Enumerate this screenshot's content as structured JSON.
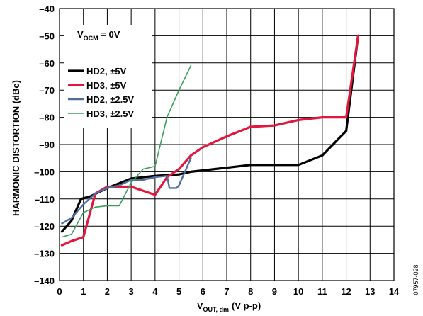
{
  "chart_data": {
    "type": "line",
    "xlabel_main": "V",
    "xlabel_sub": "OUT, dm",
    "xlabel_unit": "(V p-p)",
    "ylabel": "HARMONIC DISTORTION (dBc)",
    "xlim": [
      0,
      14
    ],
    "ylim": [
      -140,
      -40
    ],
    "xticks": [
      0,
      1,
      2,
      3,
      4,
      5,
      6,
      7,
      8,
      9,
      10,
      11,
      12,
      13,
      14
    ],
    "yticks": [
      -40,
      -50,
      -60,
      -70,
      -80,
      -90,
      -100,
      -110,
      -120,
      -130,
      -140
    ],
    "ytick_labels": [
      "–40",
      "–50",
      "–60",
      "–70",
      "–80",
      "–90",
      "–100",
      "–110",
      "–120",
      "–130",
      "–140"
    ],
    "grid": true,
    "legend_placement": "top-left",
    "annotation_main": "V",
    "annotation_sub": "OCM",
    "annotation_rest": " = 0V",
    "figure_id": "07957-028",
    "series": [
      {
        "name": "HD2, ±5V",
        "color": "#000000",
        "width": 3.2,
        "x": [
          0.1,
          0.5,
          0.9,
          1.3,
          2,
          3,
          3.5,
          4,
          5,
          5.5,
          6,
          8,
          9,
          10,
          11,
          12,
          12.5
        ],
        "y": [
          -122,
          -118,
          -110,
          -109,
          -106,
          -102.5,
          -102,
          -101.5,
          -101,
          -100,
          -99.5,
          -97.5,
          -97.5,
          -97.5,
          -94,
          -85,
          -50
        ]
      },
      {
        "name": "HD3, ±5V",
        "color": "#e3163d",
        "width": 3.2,
        "x": [
          0.1,
          0.5,
          1,
          1.5,
          2,
          3,
          4,
          4.5,
          5,
          5.5,
          6,
          7,
          8,
          9,
          10,
          11,
          12,
          12.5
        ],
        "y": [
          -127,
          -125.5,
          -124,
          -108,
          -105.5,
          -105.5,
          -108.5,
          -102,
          -99,
          -94,
          -91,
          -87,
          -83.5,
          -83,
          -81,
          -80,
          -80,
          -50
        ]
      },
      {
        "name": "HD2, ±2.5V",
        "color": "#4e6f9e",
        "width": 2.4,
        "x": [
          0.1,
          0.5,
          1,
          1.5,
          2,
          2.5,
          3,
          3.5,
          4,
          4.5,
          4.6,
          4.9,
          5.0,
          5.5
        ],
        "y": [
          -119,
          -117,
          -112,
          -108,
          -106,
          -105,
          -103,
          -103,
          -102,
          -101.5,
          -106,
          -106,
          -105,
          -95
        ]
      },
      {
        "name": "HD3, ±2.5V",
        "color": "#3a9e5c",
        "width": 1.6,
        "x": [
          0.1,
          0.5,
          1,
          1.5,
          2,
          2.5,
          3,
          3.5,
          4,
          4.5,
          5,
          5.5
        ],
        "y": [
          -124,
          -123,
          -115,
          -113,
          -112.5,
          -112.5,
          -104,
          -99,
          -98,
          -80,
          -70,
          -61
        ]
      }
    ]
  }
}
